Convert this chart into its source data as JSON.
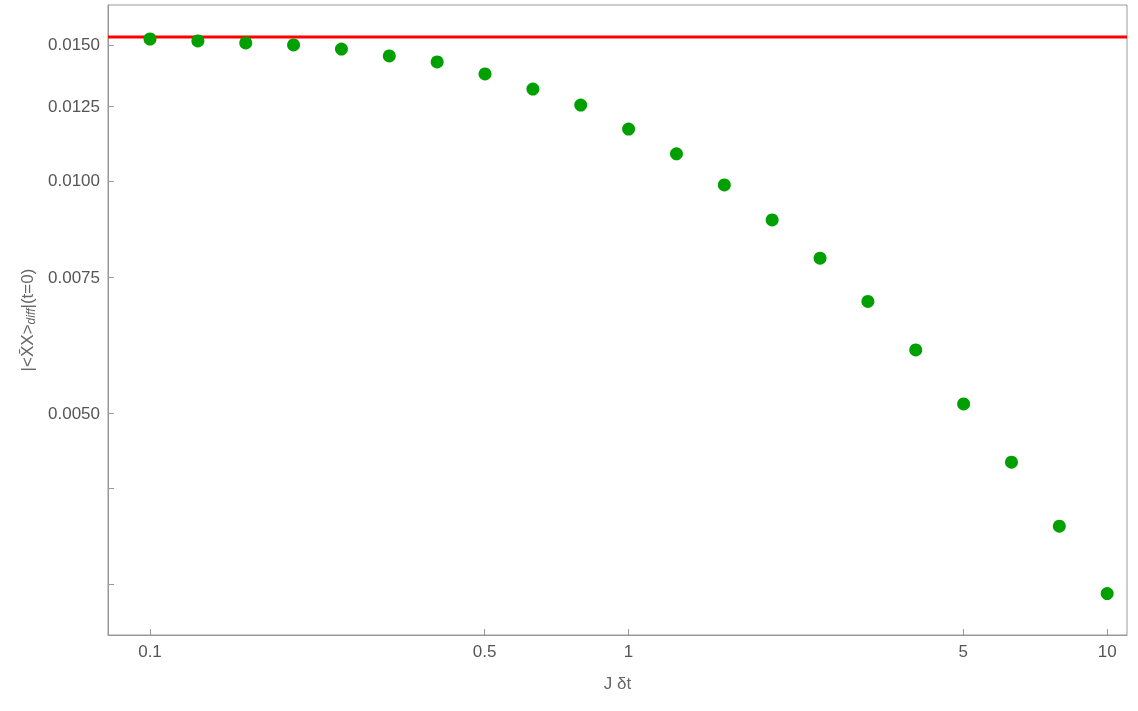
{
  "chart_data": {
    "type": "scatter",
    "xlabel": "J δt",
    "ylabel": "|<X̄X>$_{diff}$|(t=0)",
    "x": [
      0.1,
      0.1259,
      0.1585,
      0.1995,
      0.2512,
      0.3162,
      0.3981,
      0.5012,
      0.631,
      0.7943,
      1,
      1.259,
      1.585,
      1.995,
      2.512,
      3.162,
      3.981,
      5.012,
      6.31,
      7.943,
      10
    ],
    "series": [
      {
        "color": "#00a000",
        "values": [
          0.01527,
          0.01518,
          0.01509,
          0.015,
          0.01482,
          0.01452,
          0.01426,
          0.01376,
          0.01315,
          0.01254,
          0.01167,
          0.01084,
          0.00988,
          0.0089,
          0.00794,
          0.00698,
          0.00604,
          0.00514,
          0.00432,
          0.00357,
          0.00292
        ]
      }
    ],
    "ref_lines": [
      {
        "axis": "y",
        "value": 0.01536,
        "color": "#ff0000",
        "line_style": "solid"
      }
    ],
    "log": "xy",
    "marker": "circle",
    "grid": false,
    "xlim": [
      0.0817,
      11.0
    ],
    "ylim": [
      0.00258,
      0.0169
    ],
    "xticks": [
      0.1,
      0.5,
      1,
      5,
      10
    ],
    "yticks": [
      {
        "value": 0.003,
        "label": null
      },
      {
        "value": 0.004,
        "label": null
      },
      {
        "value": 0.005,
        "label": "0.0050"
      },
      {
        "value": 0.0075,
        "label": "0.0075"
      },
      {
        "value": 0.01,
        "label": "0.0100"
      },
      {
        "value": 0.0125,
        "label": "0.0125"
      },
      {
        "value": 0.015,
        "label": "0.0150"
      }
    ]
  }
}
